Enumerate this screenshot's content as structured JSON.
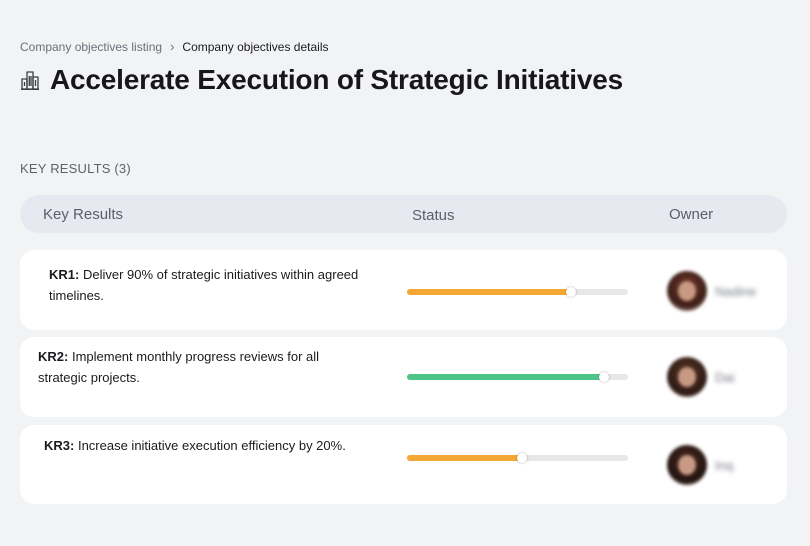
{
  "breadcrumb": {
    "parent": "Company objectives listing",
    "separator": "›",
    "current": "Company objectives details"
  },
  "page": {
    "title": "Accelerate Execution of Strategic Initiatives",
    "icon": "buildings-icon"
  },
  "section": {
    "label": "KEY RESULTS (3)"
  },
  "table": {
    "headers": {
      "key_results": "Key Results",
      "status": "Status",
      "owner": "Owner"
    },
    "rows": [
      {
        "code": "KR1:",
        "text": " Deliver 90% of strategic initiatives within agreed timelines.",
        "progress": 0.74,
        "color": "#f5a733",
        "owner": "Nadine"
      },
      {
        "code": "KR2:",
        "text": " Implement monthly progress reviews for all strategic projects.",
        "progress": 0.89,
        "color": "#4fc489",
        "owner": "Dai"
      },
      {
        "code": "KR3:",
        "text": " Increase initiative execution efficiency by 20%.",
        "progress": 0.52,
        "color": "#f5a733",
        "owner": "Inq"
      }
    ]
  }
}
